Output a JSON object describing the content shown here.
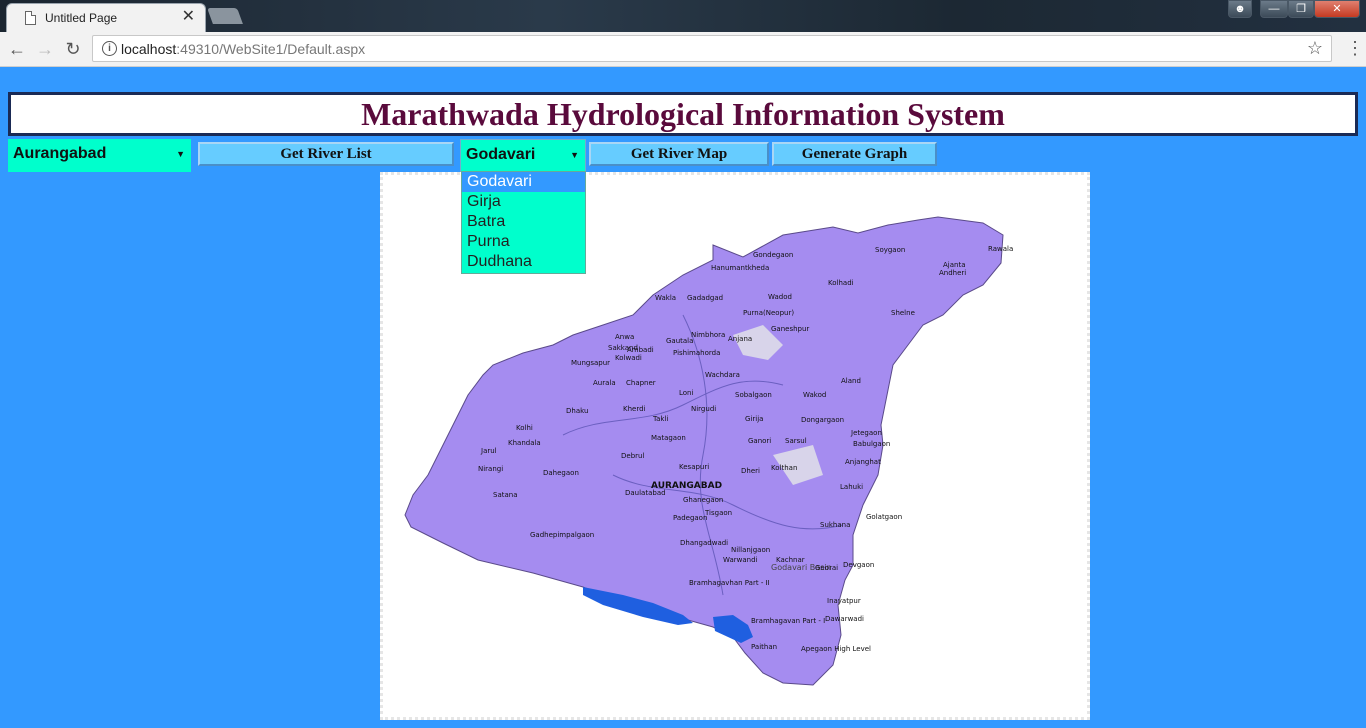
{
  "browser": {
    "tab_title": "Untitled Page",
    "tab_close": "✕",
    "url_host": "localhost",
    "url_rest": ":49310/WebSite1/Default.aspx"
  },
  "page": {
    "title": "Marathwada Hydrological Information System",
    "district_select": {
      "value": "Aurangabad"
    },
    "get_river_list_label": "Get River List",
    "river_select": {
      "value": "Godavari",
      "options": [
        "Godavari",
        "Girja",
        "Batra",
        "Purna",
        "Dudhana"
      ]
    },
    "get_river_map_label": "Get  River Map",
    "generate_graph_label": "Generate Graph"
  },
  "map": {
    "district_label": "AURANGABAD",
    "basin_label": "Godavari Basin",
    "places": [
      "Gondegaon",
      "Soygaon",
      "Rawala",
      "Hanumantkheda",
      "Ajanta",
      "Andheri",
      "Wakla",
      "Gadadgad",
      "Wadod",
      "Kolhadi",
      "Purna(Neopur)",
      "Ganeshpur",
      "Shelne",
      "Anwa",
      "Sakkand",
      "Ambadi",
      "Gautala",
      "Nimbhora",
      "Anjana",
      "Pishimahorda",
      "Kolwadi",
      "Mungsapur",
      "Aurala",
      "Chapner",
      "Wachdara",
      "Loni",
      "Sobalgaon",
      "Aland",
      "Wakod",
      "Kherdi",
      "Dhaku",
      "Takli",
      "Nirgudi",
      "Girija",
      "Dongargaon",
      "Kolhi",
      "Jetegaon",
      "Khandala",
      "Babulgaon",
      "Matagaon",
      "Ganori",
      "Sarsul",
      "Jarul",
      "Nirangi",
      "Dahegaon",
      "Debrul",
      "Kesapuri",
      "Dheri",
      "Kolthan",
      "Anjanghat",
      "Lahuki",
      "Satana",
      "Daulatabad",
      "Ghanegaon",
      "Tisgaon",
      "Sukhana",
      "Golatgaon",
      "Gadhepimpalgaon",
      "Padegaon",
      "Dhangadwadi",
      "Nillanjgaon",
      "Warwandi",
      "Kachnar",
      "Georai",
      "Devgaon",
      "Bramhagavhan Part - II",
      "Inayatpur",
      "Bramhagavan Part - I",
      "Dawarwadi",
      "Paithan",
      "Apegaon High Level"
    ]
  },
  "colors": {
    "page_bg": "#3399ff",
    "select_bg": "#00ffcc",
    "button_bg": "#66ccff",
    "title_color": "#5a0a3c",
    "map_fill": "#a58cf0"
  }
}
